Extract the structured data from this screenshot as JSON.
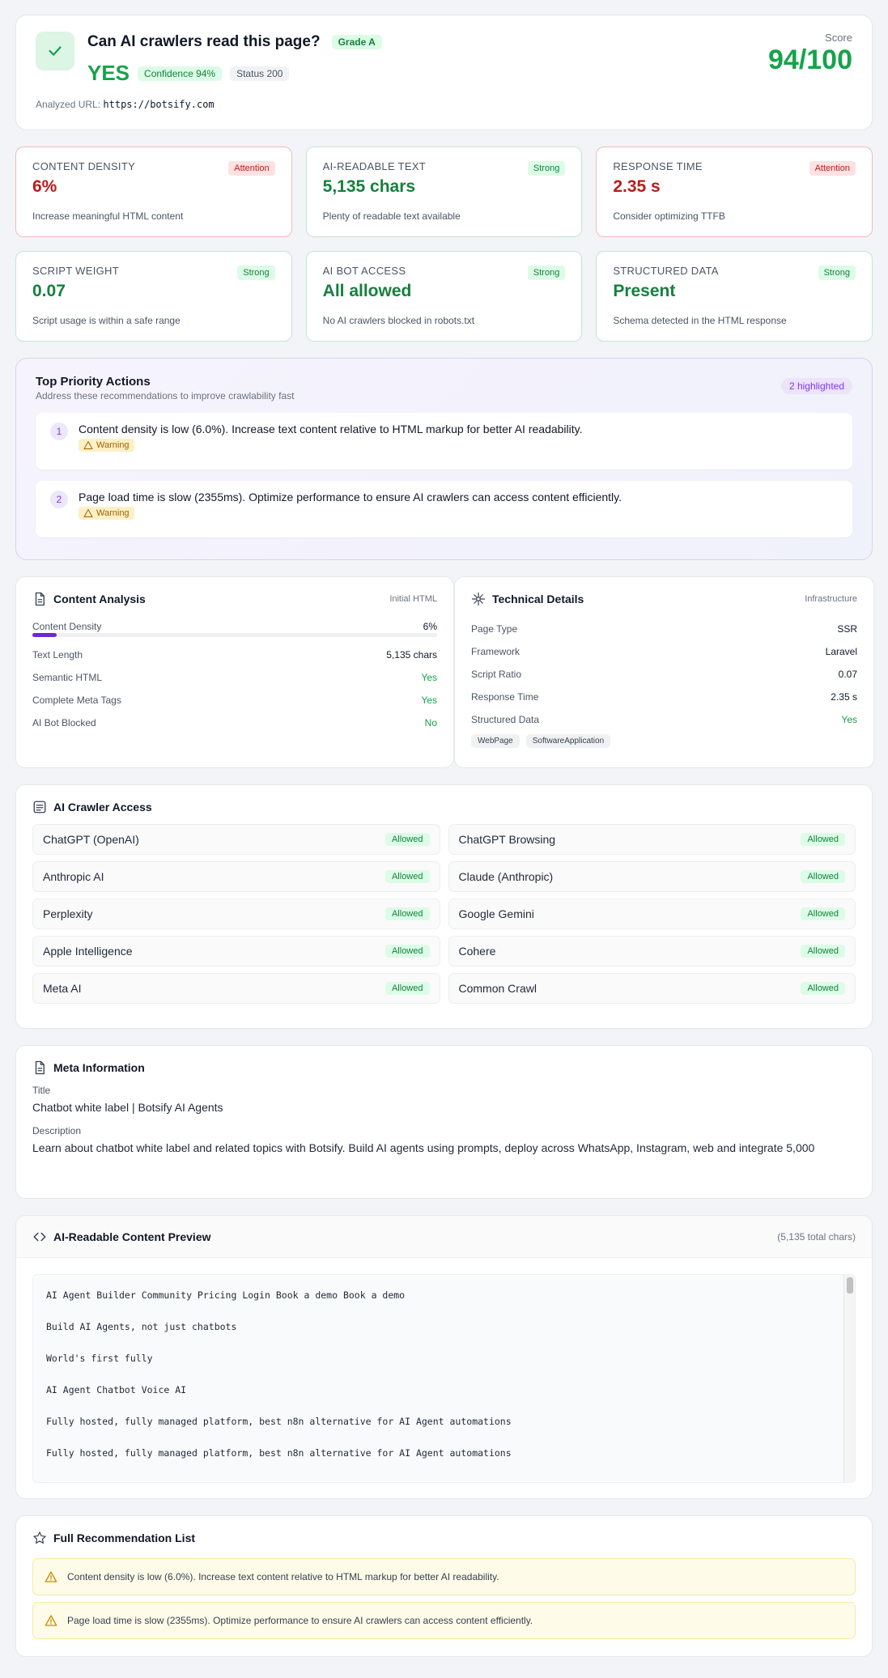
{
  "hero": {
    "question": "Can AI crawlers read this page?",
    "grade": "Grade A",
    "answer": "YES",
    "confidence": "Confidence 94%",
    "status": "Status 200",
    "url_label": "Analyzed URL:",
    "url": "https://botsify.com",
    "score_label": "Score",
    "score": "94/100"
  },
  "metrics": [
    {
      "label": "Content Density",
      "value": "6%",
      "badge": "Attention",
      "desc": "Increase meaningful HTML content",
      "state": "attention"
    },
    {
      "label": "AI-Readable Text",
      "value": "5,135 chars",
      "badge": "Strong",
      "desc": "Plenty of readable text available",
      "state": "strong"
    },
    {
      "label": "Response Time",
      "value": "2.35 s",
      "badge": "Attention",
      "desc": "Consider optimizing TTFB",
      "state": "attention"
    },
    {
      "label": "Script Weight",
      "value": "0.07",
      "badge": "Strong",
      "desc": "Script usage is within a safe range",
      "state": "strong"
    },
    {
      "label": "AI Bot Access",
      "value": "All allowed",
      "badge": "Strong",
      "desc": "No AI crawlers blocked in robots.txt",
      "state": "strong"
    },
    {
      "label": "Structured Data",
      "value": "Present",
      "badge": "Strong",
      "desc": "Schema detected in the HTML response",
      "state": "strong"
    }
  ],
  "priority": {
    "title": "Top Priority Actions",
    "subtitle": "Address these recommendations to improve crawlability fast",
    "highlighted": "2 highlighted",
    "items": [
      {
        "num": "1",
        "text": "Content density is low (6.0%). Increase text content relative to HTML markup for better AI readability.",
        "tag": "Warning"
      },
      {
        "num": "2",
        "text": "Page load time is slow (2355ms). Optimize performance to ensure AI crawlers can access content efficiently.",
        "tag": "Warning"
      }
    ]
  },
  "content_analysis": {
    "title": "Content Analysis",
    "tag": "Initial HTML",
    "density_label": "Content Density",
    "density_value": "6%",
    "density_fraction": 0.06,
    "rows": [
      {
        "k": "Text Length",
        "v": "5,135 chars",
        "good": false
      },
      {
        "k": "Semantic HTML",
        "v": "Yes",
        "good": true
      },
      {
        "k": "Complete Meta Tags",
        "v": "Yes",
        "good": true
      },
      {
        "k": "AI Bot Blocked",
        "v": "No",
        "good": true
      }
    ]
  },
  "technical": {
    "title": "Technical Details",
    "tag": "Infrastructure",
    "rows": [
      {
        "k": "Page Type",
        "v": "SSR",
        "good": false
      },
      {
        "k": "Framework",
        "v": "Laravel",
        "good": false
      },
      {
        "k": "Script Ratio",
        "v": "0.07",
        "good": false
      },
      {
        "k": "Response Time",
        "v": "2.35 s",
        "good": false
      },
      {
        "k": "Structured Data",
        "v": "Yes",
        "good": true
      }
    ],
    "chips": [
      "WebPage",
      "SoftwareApplication"
    ]
  },
  "crawlers": {
    "title": "AI Crawler Access",
    "items": [
      {
        "name": "ChatGPT (OpenAI)",
        "status": "Allowed"
      },
      {
        "name": "ChatGPT Browsing",
        "status": "Allowed"
      },
      {
        "name": "Anthropic AI",
        "status": "Allowed"
      },
      {
        "name": "Claude (Anthropic)",
        "status": "Allowed"
      },
      {
        "name": "Perplexity",
        "status": "Allowed"
      },
      {
        "name": "Google Gemini",
        "status": "Allowed"
      },
      {
        "name": "Apple Intelligence",
        "status": "Allowed"
      },
      {
        "name": "Cohere",
        "status": "Allowed"
      },
      {
        "name": "Meta AI",
        "status": "Allowed"
      },
      {
        "name": "Common Crawl",
        "status": "Allowed"
      }
    ]
  },
  "meta": {
    "title": "Meta Information",
    "title_label": "Title",
    "title_value": "Chatbot white label | Botsify AI Agents",
    "desc_label": "Description",
    "desc_value": "Learn about chatbot white label and related topics with Botsify. Build AI agents using prompts, deploy across WhatsApp, Instagram, web and integrate 5,000"
  },
  "preview": {
    "title": "AI-Readable Content Preview",
    "count": "(5,135 total chars)",
    "lines": [
      "AI Agent Builder Community Pricing Login Book a demo Book a demo",
      "Build AI Agents, not just chatbots",
      "World's first fully",
      "AI Agent Chatbot Voice AI",
      "Fully hosted, fully managed platform, best n8n alternative for AI Agent automations",
      "Fully hosted, fully managed platform, best n8n alternative for AI Agent automations"
    ]
  },
  "recommendations": {
    "title": "Full Recommendation List",
    "items": [
      "Content density is low (6.0%). Increase text content relative to HTML markup for better AI readability.",
      "Page load time is slow (2355ms). Optimize performance to ensure AI crawlers can access content efficiently."
    ]
  },
  "colors": {
    "accent": "#16a34a",
    "danger": "#b91c1c",
    "purple": "#7c3aed",
    "warning": "#a16207"
  },
  "icons": {
    "check": "check-icon",
    "doc": "document-icon",
    "tech": "sparkle-icon",
    "list": "list-icon",
    "code": "code-icon",
    "star": "star-icon",
    "warn": "warning-icon"
  }
}
